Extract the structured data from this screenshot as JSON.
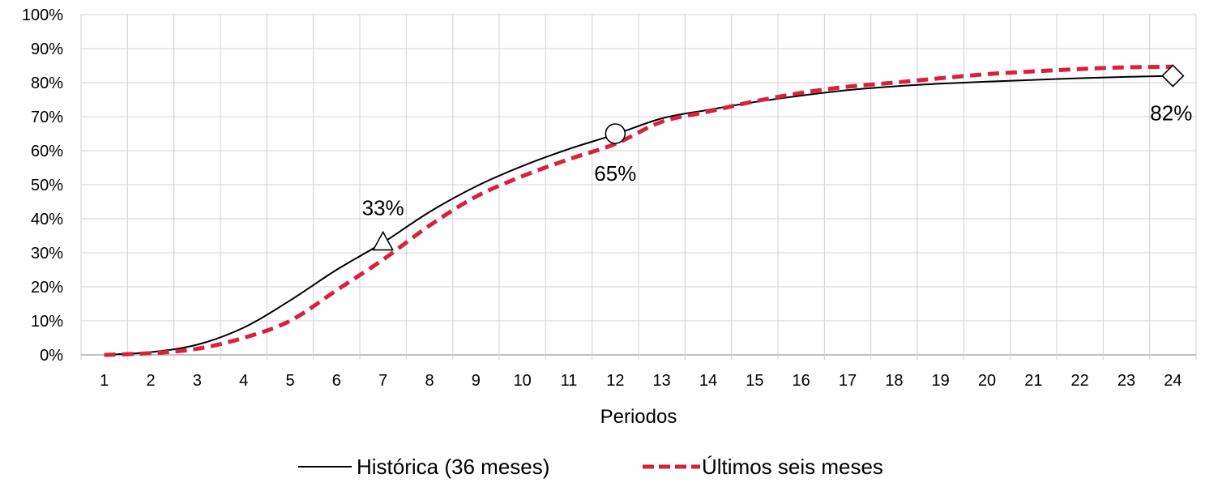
{
  "chart_data": {
    "type": "line",
    "title": "",
    "xlabel": "Periodos",
    "ylabel": "",
    "x": [
      1,
      2,
      3,
      4,
      5,
      6,
      7,
      8,
      9,
      10,
      11,
      12,
      13,
      14,
      15,
      16,
      17,
      18,
      19,
      20,
      21,
      22,
      23,
      24
    ],
    "x_ticks": [
      "1",
      "2",
      "3",
      "4",
      "5",
      "6",
      "7",
      "8",
      "9",
      "10",
      "11",
      "12",
      "13",
      "14",
      "15",
      "16",
      "17",
      "18",
      "19",
      "20",
      "21",
      "22",
      "23",
      "24"
    ],
    "ylim": [
      0,
      100
    ],
    "y_ticks": [
      "0%",
      "10%",
      "20%",
      "30%",
      "40%",
      "50%",
      "60%",
      "70%",
      "80%",
      "90%",
      "100%"
    ],
    "grid": true,
    "legend_position": "bottom",
    "series": [
      {
        "name": "Histórica (36 meses)",
        "color": "#000000",
        "style": "solid",
        "values": [
          0,
          0.8,
          3,
          8,
          16,
          25,
          33,
          42,
          49.5,
          55.5,
          60.5,
          64.8,
          69.5,
          72,
          74.3,
          76.2,
          77.8,
          78.9,
          79.7,
          80.3,
          80.8,
          81.3,
          81.7,
          82
        ]
      },
      {
        "name": "Últimos seis meses",
        "color": "#d9203f",
        "style": "dashed",
        "values": [
          0,
          0.5,
          1.8,
          5,
          10,
          19,
          28,
          38,
          46.5,
          52.5,
          57.5,
          62,
          68.5,
          71.5,
          74.5,
          77,
          78.8,
          80,
          81.3,
          82.5,
          83.3,
          84,
          84.5,
          84.7
        ]
      }
    ],
    "annotations": [
      {
        "label": "33%",
        "x": 7,
        "value": 33,
        "marker": "triangle"
      },
      {
        "label": "65%",
        "x": 12,
        "value": 65,
        "marker": "circle"
      },
      {
        "label": "82%",
        "x": 24,
        "value": 82,
        "marker": "diamond"
      }
    ]
  }
}
